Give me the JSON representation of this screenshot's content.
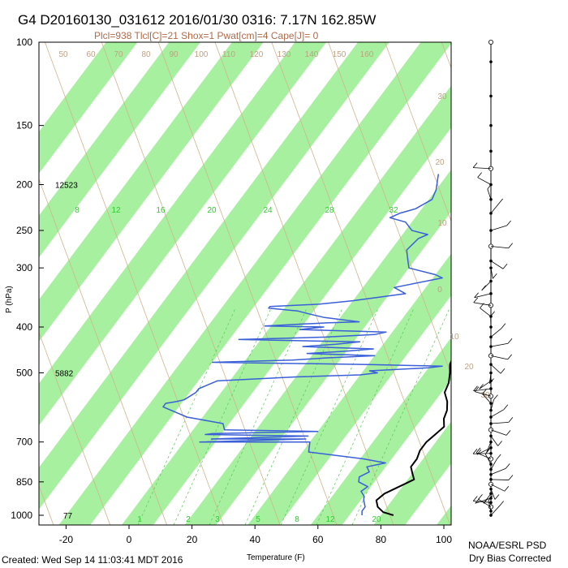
{
  "chart_data": {
    "type": "line",
    "title": "G4 D20160130_031612 2016/01/30 0316:  7.17N 162.85W",
    "subtitle": "Plcl=938 Tlcl[C]=21 Shox=1 Pwat[cm]=4 Cape[J]= 0",
    "xlabel": "Temperature (F)",
    "ylabel": "P (hPa)",
    "x_ticks": [
      "-20",
      "0",
      "20",
      "40",
      "60",
      "80",
      "100"
    ],
    "y_ticks": [
      "100",
      "150",
      "200",
      "250",
      "300",
      "400",
      "500",
      "700",
      "850",
      "1000"
    ],
    "xlim": [
      -28,
      106
    ],
    "ylim": [
      1050,
      100
    ],
    "y_scale": "log",
    "height_labels": [
      {
        "p": 200,
        "text": "12523"
      },
      {
        "p": 500,
        "text": "5882"
      },
      {
        "p": 1000,
        "text": "77"
      }
    ],
    "mixing_ratio_labels": [
      "8",
      "12",
      "16",
      "20",
      "24",
      "28",
      "32"
    ],
    "lower_mixing_labels": [
      "1",
      "2",
      "3",
      "5",
      "8",
      "12",
      "20"
    ],
    "isotherm_labels": [
      "50",
      "60",
      "70",
      "80",
      "90",
      "100",
      "110",
      "120",
      "130",
      "140",
      "150",
      "160"
    ],
    "right_isotherm_labels": [
      "30",
      "20",
      "10",
      "0",
      "10",
      "20",
      "30"
    ],
    "series": [
      {
        "name": "temperature",
        "color": "#000000",
        "points": [
          [
            84,
            1000
          ],
          [
            80,
            985
          ],
          [
            77,
            960
          ],
          [
            75,
            930
          ],
          [
            76,
            900
          ],
          [
            79,
            870
          ],
          [
            82,
            840
          ],
          [
            80,
            815
          ],
          [
            78,
            790
          ],
          [
            78,
            760
          ],
          [
            77,
            730
          ],
          [
            77,
            700
          ],
          [
            78,
            675
          ],
          [
            79,
            650
          ],
          [
            77,
            625
          ],
          [
            76,
            600
          ],
          [
            74,
            575
          ],
          [
            71,
            550
          ],
          [
            70,
            525
          ],
          [
            68,
            500
          ],
          [
            66,
            480
          ],
          [
            65,
            460
          ],
          [
            66,
            440
          ],
          [
            64,
            420
          ],
          [
            63,
            400
          ],
          [
            61,
            380
          ],
          [
            58,
            360
          ],
          [
            56,
            345
          ],
          [
            55,
            330
          ],
          [
            53,
            315
          ],
          [
            52,
            300
          ],
          [
            53,
            285
          ],
          [
            52,
            270
          ],
          [
            50,
            255
          ],
          [
            47,
            240
          ],
          [
            45,
            228
          ],
          [
            42,
            215
          ],
          [
            39,
            205
          ],
          [
            37,
            195
          ],
          [
            34,
            185
          ],
          [
            33,
            178
          ],
          [
            31,
            172
          ]
        ]
      },
      {
        "name": "dewpoint",
        "color": "#3a5fd8",
        "points": [
          [
            74,
            1000
          ],
          [
            73,
            980
          ],
          [
            73,
            960
          ],
          [
            71,
            930
          ],
          [
            70,
            910
          ],
          [
            68,
            890
          ],
          [
            69,
            870
          ],
          [
            65,
            850
          ],
          [
            64,
            830
          ],
          [
            66,
            810
          ],
          [
            64,
            790
          ],
          [
            69,
            775
          ],
          [
            61,
            760
          ],
          [
            42,
            735
          ],
          [
            40,
            700
          ],
          [
            5,
            700
          ],
          [
            38,
            690
          ],
          [
            8,
            690
          ],
          [
            38,
            680
          ],
          [
            5,
            675
          ],
          [
            7,
            672
          ],
          [
            40,
            665
          ],
          [
            10,
            660
          ],
          [
            8,
            640
          ],
          [
            -5,
            620
          ],
          [
            -15,
            590
          ],
          [
            -15,
            580
          ],
          [
            -12,
            575
          ],
          [
            -10,
            570
          ],
          [
            -9,
            560
          ],
          [
            -8,
            550
          ],
          [
            -8,
            540
          ],
          [
            -4,
            520
          ],
          [
            20,
            510
          ],
          [
            40,
            505
          ],
          [
            45,
            500
          ],
          [
            42,
            495
          ],
          [
            60,
            488
          ],
          [
            64,
            484
          ],
          [
            40,
            480
          ],
          [
            -10,
            475
          ],
          [
            15,
            470
          ],
          [
            25,
            465
          ],
          [
            40,
            460
          ],
          [
            18,
            455
          ],
          [
            30,
            450
          ],
          [
            38,
            445
          ],
          [
            15,
            440
          ],
          [
            25,
            435
          ],
          [
            32,
            430
          ],
          [
            -7,
            425
          ],
          [
            20,
            420
          ],
          [
            35,
            415
          ],
          [
            38,
            410
          ],
          [
            10,
            405
          ],
          [
            17,
            400
          ],
          [
            -2,
            398
          ],
          [
            17,
            392
          ],
          [
            27,
            390
          ],
          [
            15,
            382
          ],
          [
            9,
            375
          ],
          [
            5,
            370
          ],
          [
            -5,
            365
          ],
          [
            -5,
            362
          ],
          [
            10,
            358
          ],
          [
            20,
            352
          ],
          [
            35,
            340
          ],
          [
            30,
            330
          ],
          [
            43,
            315
          ],
          [
            40,
            310
          ],
          [
            30,
            300
          ],
          [
            28,
            290
          ],
          [
            25,
            275
          ],
          [
            26,
            260
          ],
          [
            28,
            255
          ],
          [
            22,
            250
          ],
          [
            18,
            240
          ],
          [
            12,
            235
          ],
          [
            14,
            230
          ],
          [
            18,
            225
          ],
          [
            21,
            215
          ],
          [
            20,
            205
          ],
          [
            18,
            195
          ],
          [
            17,
            190
          ]
        ]
      }
    ]
  },
  "footer": {
    "created": "Created: Wed Sep 14 11:03:41 MDT 2016",
    "org": "NOAA/ESRL PSD",
    "correction": "Dry Bias Corrected"
  }
}
